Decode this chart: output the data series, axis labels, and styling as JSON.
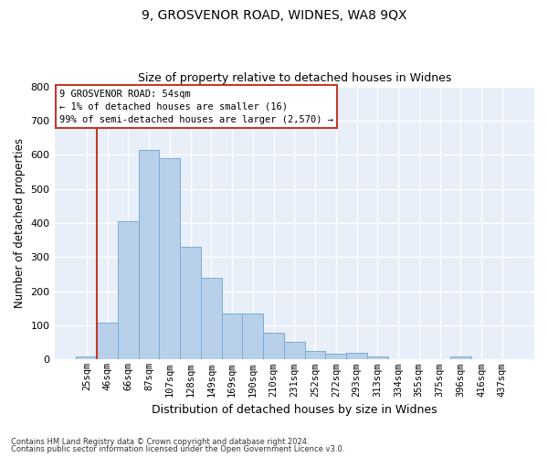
{
  "title1": "9, GROSVENOR ROAD, WIDNES, WA8 9QX",
  "title2": "Size of property relative to detached houses in Widnes",
  "xlabel": "Distribution of detached houses by size in Widnes",
  "ylabel": "Number of detached properties",
  "bar_values": [
    8,
    107,
    405,
    613,
    591,
    330,
    238,
    136,
    136,
    80,
    53,
    24,
    16,
    19,
    8,
    0,
    0,
    0,
    8,
    0,
    0
  ],
  "categories": [
    "25sqm",
    "46sqm",
    "66sqm",
    "87sqm",
    "107sqm",
    "128sqm",
    "149sqm",
    "169sqm",
    "190sqm",
    "210sqm",
    "231sqm",
    "252sqm",
    "272sqm",
    "293sqm",
    "313sqm",
    "334sqm",
    "355sqm",
    "375sqm",
    "396sqm",
    "416sqm",
    "437sqm"
  ],
  "bar_color": "#b8d0ea",
  "bar_edge_color": "#7aadd4",
  "background_color": "#e8eff9",
  "grid_color": "#ffffff",
  "ylim": [
    0,
    800
  ],
  "yticks": [
    0,
    100,
    200,
    300,
    400,
    500,
    600,
    700,
    800
  ],
  "vline_color": "#c0392b",
  "annotation_text": "9 GROSVENOR ROAD: 54sqm\n← 1% of detached houses are smaller (16)\n99% of semi-detached houses are larger (2,570) →",
  "annotation_box_color": "#c0392b",
  "footer1": "Contains HM Land Registry data © Crown copyright and database right 2024.",
  "footer2": "Contains public sector information licensed under the Open Government Licence v3.0."
}
